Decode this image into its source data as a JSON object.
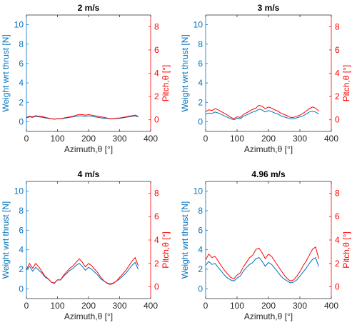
{
  "colors": {
    "left_axis": "#0072BD",
    "right_axis": "#FF0000",
    "axis_black": "#262626",
    "background": "#FFFFFF"
  },
  "shared_axes": {
    "xlabel": "Azimuth,θ [°]",
    "ylabel_left": "Weight wrt thrust [N]",
    "ylabel_right": "Pitch,θ [°]",
    "xlim": [
      0,
      400
    ],
    "xticks": [
      0,
      100,
      200,
      300,
      400
    ],
    "ylim_left": [
      -1,
      11
    ],
    "yticks_left": [
      0,
      2,
      4,
      6,
      8,
      10
    ],
    "ylim_right": [
      -1,
      9
    ],
    "yticks_right": [
      0,
      2,
      4,
      6,
      8
    ],
    "grid": false
  },
  "chart_data": [
    {
      "type": "line",
      "title": "2 m/s",
      "x": [
        0,
        10,
        20,
        30,
        40,
        50,
        60,
        70,
        80,
        90,
        100,
        110,
        120,
        130,
        140,
        150,
        160,
        170,
        180,
        190,
        200,
        210,
        220,
        230,
        240,
        250,
        260,
        270,
        280,
        290,
        300,
        310,
        320,
        330,
        340,
        350,
        360
      ],
      "series": [
        {
          "axis": "left",
          "color": "#0072BD",
          "values": [
            0.4,
            0.5,
            0.45,
            0.55,
            0.5,
            0.45,
            0.4,
            0.35,
            0.3,
            0.25,
            0.3,
            0.3,
            0.35,
            0.4,
            0.45,
            0.5,
            0.55,
            0.6,
            0.6,
            0.55,
            0.6,
            0.55,
            0.5,
            0.45,
            0.4,
            0.35,
            0.35,
            0.3,
            0.3,
            0.35,
            0.35,
            0.4,
            0.45,
            0.5,
            0.55,
            0.6,
            0.5
          ]
        },
        {
          "axis": "right",
          "color": "#FF0000",
          "values": [
            0.2,
            0.3,
            0.25,
            0.35,
            0.3,
            0.3,
            0.2,
            0.15,
            0.1,
            0.05,
            0.1,
            0.1,
            0.15,
            0.2,
            0.25,
            0.3,
            0.4,
            0.45,
            0.45,
            0.4,
            0.45,
            0.4,
            0.35,
            0.3,
            0.25,
            0.2,
            0.15,
            0.1,
            0.1,
            0.15,
            0.15,
            0.2,
            0.25,
            0.3,
            0.35,
            0.4,
            0.3
          ]
        }
      ]
    },
    {
      "type": "line",
      "title": "3 m/s",
      "x": [
        0,
        10,
        20,
        30,
        40,
        50,
        60,
        70,
        80,
        90,
        100,
        110,
        120,
        130,
        140,
        150,
        160,
        170,
        180,
        190,
        200,
        210,
        220,
        230,
        240,
        250,
        260,
        270,
        280,
        290,
        300,
        310,
        320,
        330,
        340,
        350,
        360
      ],
      "series": [
        {
          "axis": "left",
          "color": "#0072BD",
          "values": [
            0.8,
            0.9,
            0.85,
            1.0,
            0.9,
            0.75,
            0.6,
            0.45,
            0.3,
            0.2,
            0.35,
            0.3,
            0.55,
            0.7,
            0.85,
            1.0,
            1.1,
            1.3,
            1.2,
            1.0,
            1.15,
            1.05,
            0.9,
            0.8,
            0.6,
            0.5,
            0.4,
            0.3,
            0.3,
            0.4,
            0.5,
            0.6,
            0.8,
            1.0,
            1.1,
            1.0,
            0.8
          ]
        },
        {
          "axis": "right",
          "color": "#FF0000",
          "values": [
            0.7,
            0.85,
            0.8,
            0.95,
            0.85,
            0.7,
            0.55,
            0.4,
            0.2,
            0.1,
            0.25,
            0.2,
            0.45,
            0.6,
            0.75,
            0.9,
            1.0,
            1.25,
            1.15,
            0.95,
            1.1,
            1.0,
            0.85,
            0.75,
            0.55,
            0.45,
            0.35,
            0.2,
            0.2,
            0.3,
            0.4,
            0.55,
            0.75,
            0.95,
            1.1,
            1.0,
            0.75
          ]
        }
      ]
    },
    {
      "type": "line",
      "title": "4 m/s",
      "x": [
        0,
        10,
        20,
        30,
        40,
        50,
        60,
        70,
        80,
        90,
        100,
        110,
        120,
        130,
        140,
        150,
        160,
        170,
        180,
        190,
        200,
        210,
        220,
        230,
        240,
        250,
        260,
        270,
        280,
        290,
        300,
        310,
        320,
        330,
        340,
        350,
        360
      ],
      "series": [
        {
          "axis": "left",
          "color": "#0072BD",
          "values": [
            1.9,
            2.3,
            1.8,
            2.2,
            1.9,
            1.6,
            1.2,
            1.0,
            0.7,
            0.6,
            0.9,
            0.9,
            1.3,
            1.6,
            1.9,
            2.1,
            2.4,
            2.6,
            2.3,
            1.9,
            2.2,
            2.0,
            1.7,
            1.4,
            1.0,
            0.8,
            0.6,
            0.5,
            0.6,
            0.8,
            1.0,
            1.3,
            1.6,
            2.0,
            2.4,
            2.7,
            2.0
          ]
        },
        {
          "axis": "right",
          "color": "#FF0000",
          "values": [
            1.5,
            2.0,
            1.6,
            2.0,
            1.7,
            1.3,
            0.9,
            0.7,
            0.4,
            0.3,
            0.6,
            0.6,
            1.0,
            1.3,
            1.6,
            1.8,
            2.1,
            2.4,
            2.1,
            1.7,
            2.0,
            1.8,
            1.5,
            1.2,
            0.8,
            0.5,
            0.3,
            0.2,
            0.3,
            0.5,
            0.8,
            1.1,
            1.4,
            1.8,
            2.2,
            2.5,
            1.8
          ]
        }
      ]
    },
    {
      "type": "line",
      "title": "4.96 m/s",
      "x": [
        0,
        10,
        20,
        30,
        40,
        50,
        60,
        70,
        80,
        90,
        100,
        110,
        120,
        130,
        140,
        150,
        160,
        170,
        180,
        190,
        200,
        210,
        220,
        230,
        240,
        250,
        260,
        270,
        280,
        290,
        300,
        310,
        320,
        330,
        340,
        350,
        360
      ],
      "series": [
        {
          "axis": "left",
          "color": "#0072BD",
          "values": [
            2.4,
            2.8,
            2.5,
            2.6,
            2.2,
            1.8,
            1.4,
            1.1,
            0.9,
            0.8,
            1.1,
            1.3,
            1.8,
            2.2,
            2.5,
            2.7,
            3.1,
            3.2,
            2.8,
            2.3,
            2.7,
            2.5,
            2.1,
            1.7,
            1.3,
            1.0,
            0.8,
            0.6,
            0.7,
            0.9,
            1.3,
            1.7,
            2.1,
            2.6,
            3.0,
            3.2,
            2.3
          ]
        },
        {
          "axis": "right",
          "color": "#FF0000",
          "values": [
            2.3,
            2.8,
            2.5,
            2.6,
            2.2,
            1.8,
            1.4,
            1.1,
            0.8,
            0.7,
            1.0,
            1.2,
            1.7,
            2.1,
            2.5,
            2.7,
            3.2,
            3.3,
            2.9,
            2.4,
            2.8,
            2.6,
            2.2,
            1.8,
            1.4,
            1.0,
            0.7,
            0.5,
            0.6,
            0.9,
            1.3,
            1.8,
            2.2,
            2.7,
            3.2,
            3.4,
            2.4
          ]
        }
      ]
    }
  ]
}
